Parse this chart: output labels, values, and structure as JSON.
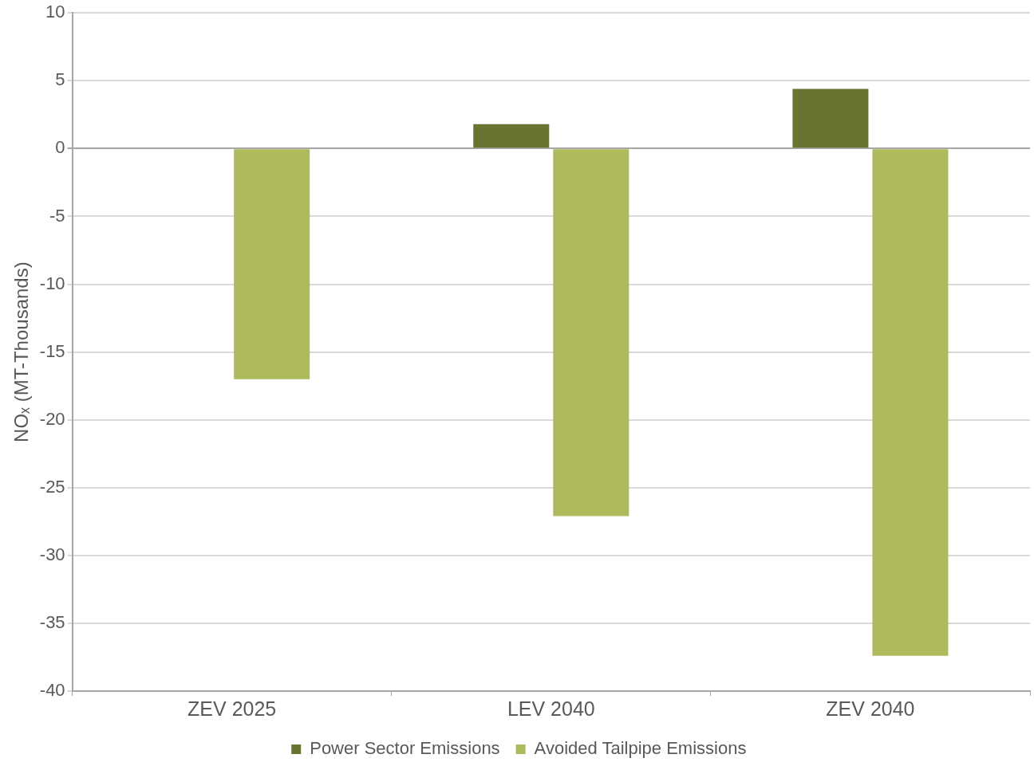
{
  "chart_data": {
    "type": "bar",
    "ylabel": "NOₓ (MT-Thousands)",
    "categories": [
      "ZEV 2025",
      "LEV 2040",
      "ZEV 2040"
    ],
    "series": [
      {
        "name": "Power Sector Emissions",
        "color": "#6b7330",
        "values": [
          0,
          1.8,
          4.4
        ]
      },
      {
        "name": "Avoided Tailpipe Emissions",
        "color": "#afba5c",
        "values": [
          -17.0,
          -27.1,
          -37.4
        ]
      }
    ],
    "ylim": [
      -40,
      10
    ],
    "yticks": [
      -40,
      -35,
      -30,
      -25,
      -20,
      -15,
      -10,
      -5,
      0,
      5,
      10
    ],
    "grid": "y",
    "legend": "bottom"
  }
}
